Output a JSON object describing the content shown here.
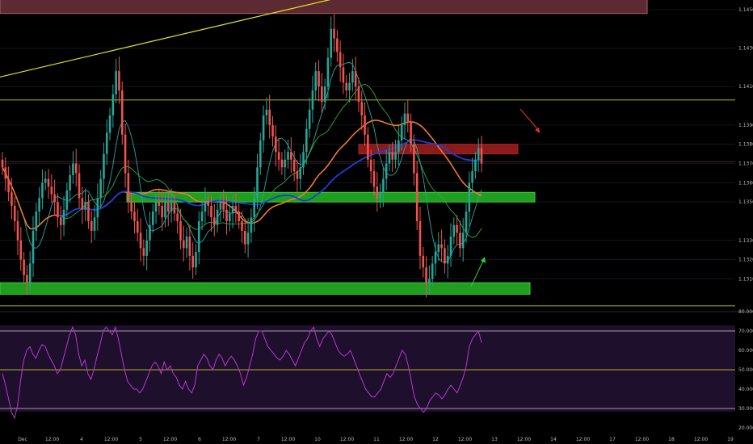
{
  "colors": {
    "background": "#000000",
    "bull": "#26a69a",
    "bear": "#ef5350",
    "yellow": "#e8e817",
    "green_zone": "#1f9e1f",
    "red_zone": "#8b1a1a",
    "rsi_line": "#b53ad0",
    "rsi_bg": "#1e0f2c",
    "ma_fast": "#1d3cd9",
    "ma_slow": "#ef7a2e",
    "ma_green": "#2eaa3c",
    "ma_teal": "#2aa6a0"
  },
  "chart_data": [
    {
      "type": "candlestick",
      "price_ticks": [
        "1.14500",
        "1.14300",
        "1.14100",
        "1.13900",
        "1.13800",
        "1.13700",
        "1.13600",
        "1.13500",
        "1.13300",
        "1.13200",
        "1.13100"
      ],
      "price_tick_values": [
        1.145,
        1.143,
        1.141,
        1.139,
        1.138,
        1.137,
        1.136,
        1.135,
        1.133,
        1.132,
        1.131
      ],
      "ylim": [
        1.1293,
        1.1455
      ],
      "x_ticks": [
        "Dec",
        "12:00",
        "4",
        "12:00",
        "5",
        "12:00",
        "6",
        "12:00",
        "7",
        "12:00",
        "10",
        "12:00",
        "11",
        "12:00",
        "12",
        "12:00",
        "13",
        "12:00",
        "14",
        "12:00",
        "17",
        "12:00",
        "18",
        "12:00",
        "19"
      ],
      "horizontal_levels": [
        1.1403,
        1.1296,
        1.1371
      ],
      "zones": [
        {
          "name": "top-resistance",
          "from": 1.1448,
          "to": 1.1457
        },
        {
          "name": "red-resistance",
          "from": 1.1375,
          "to": 1.138
        },
        {
          "name": "green-support",
          "from": 1.135,
          "to": 1.1355
        },
        {
          "name": "green-support-low",
          "from": 1.1302,
          "to": 1.1308
        }
      ],
      "trendline": {
        "from": 1.1415,
        "to": 1.1463
      },
      "closes": [
        1.1368,
        1.1362,
        1.1355,
        1.1348,
        1.134,
        1.133,
        1.132,
        1.1312,
        1.1308,
        1.1318,
        1.1335,
        1.1345,
        1.1352,
        1.136,
        1.1362,
        1.1358,
        1.1354,
        1.135,
        1.1342,
        1.1338,
        1.1346,
        1.1356,
        1.1364,
        1.137,
        1.1365,
        1.1352,
        1.1346,
        1.135,
        1.134,
        1.1335,
        1.1342,
        1.1352,
        1.1362,
        1.1375,
        1.1386,
        1.1395,
        1.1406,
        1.1418,
        1.1408,
        1.1385,
        1.1365,
        1.135,
        1.1345,
        1.134,
        1.1334,
        1.1326,
        1.1322,
        1.133,
        1.1338,
        1.1345,
        1.135,
        1.1348,
        1.1342,
        1.135,
        1.1345,
        1.135,
        1.1344,
        1.134,
        1.133,
        1.1326,
        1.1332,
        1.1322,
        1.1316,
        1.1324,
        1.134,
        1.1345,
        1.135,
        1.1348,
        1.1342,
        1.1338,
        1.1346,
        1.135,
        1.1346,
        1.134,
        1.1344,
        1.1348,
        1.1345,
        1.134,
        1.1335,
        1.1328,
        1.1334,
        1.1342,
        1.1352,
        1.1368,
        1.1382,
        1.1395,
        1.1398,
        1.139,
        1.1384,
        1.1376,
        1.1372,
        1.1368,
        1.1372,
        1.1376,
        1.1372,
        1.1366,
        1.1362,
        1.1368,
        1.1376,
        1.1388,
        1.1398,
        1.1408,
        1.1418,
        1.141,
        1.1402,
        1.141,
        1.1425,
        1.144,
        1.1435,
        1.1428,
        1.142,
        1.1412,
        1.1408,
        1.1412,
        1.1418,
        1.141,
        1.1402,
        1.1395,
        1.1385,
        1.1372,
        1.1366,
        1.1358,
        1.1352,
        1.1355,
        1.1362,
        1.137,
        1.1376,
        1.1372,
        1.1376,
        1.1382,
        1.139,
        1.1396,
        1.1392,
        1.138,
        1.1365,
        1.134,
        1.1322,
        1.1316,
        1.1308,
        1.131,
        1.1318,
        1.1324,
        1.1328,
        1.1326,
        1.1318,
        1.1322,
        1.1332,
        1.1338,
        1.1334,
        1.1326,
        1.1334,
        1.1345,
        1.136,
        1.1366,
        1.1372,
        1.1378,
        1.137
      ]
    },
    {
      "type": "line",
      "name": "RSI",
      "ylim": [
        20,
        80
      ],
      "ticks": [
        "80.0000",
        "70.0000",
        "60.0000",
        "50.0000",
        "40.0000",
        "30.0000",
        "20.0000"
      ],
      "tick_values": [
        80,
        70,
        60,
        50,
        40,
        30,
        20
      ],
      "levels": [
        70,
        50,
        30
      ],
      "values": [
        48,
        42,
        35,
        28,
        25,
        32,
        45,
        55,
        60,
        62,
        58,
        56,
        60,
        63,
        62,
        58,
        55,
        52,
        48,
        50,
        56,
        62,
        68,
        72,
        68,
        58,
        52,
        55,
        48,
        45,
        50,
        57,
        63,
        70,
        72,
        70,
        68,
        72,
        66,
        58,
        50,
        44,
        42,
        40,
        40,
        38,
        40,
        44,
        48,
        52,
        54,
        52,
        48,
        54,
        50,
        52,
        48,
        46,
        42,
        40,
        44,
        40,
        38,
        42,
        52,
        55,
        58,
        56,
        52,
        50,
        55,
        58,
        56,
        52,
        55,
        57,
        55,
        52,
        48,
        42,
        46,
        52,
        58,
        66,
        70,
        70,
        66,
        62,
        60,
        58,
        56,
        55,
        57,
        60,
        58,
        55,
        52,
        56,
        60,
        64,
        66,
        70,
        72,
        66,
        62,
        66,
        68,
        70,
        68,
        64,
        60,
        58,
        57,
        58,
        60,
        56,
        52,
        48,
        44,
        40,
        38,
        36,
        36,
        38,
        40,
        44,
        48,
        46,
        48,
        52,
        56,
        60,
        58,
        52,
        44,
        36,
        32,
        30,
        28,
        30,
        34,
        36,
        38,
        37,
        35,
        37,
        40,
        42,
        40,
        38,
        42,
        46,
        52,
        62,
        66,
        68,
        70,
        64
      ]
    }
  ]
}
